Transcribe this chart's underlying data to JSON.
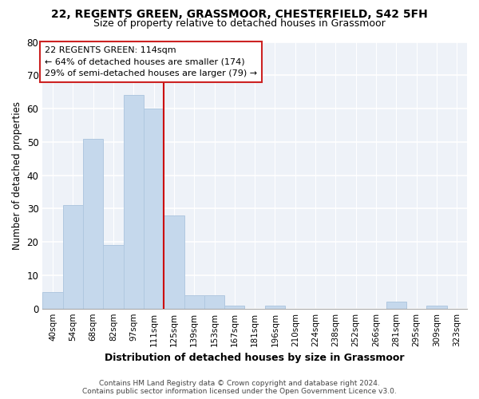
{
  "title": "22, REGENTS GREEN, GRASSMOOR, CHESTERFIELD, S42 5FH",
  "subtitle": "Size of property relative to detached houses in Grassmoor",
  "xlabel": "Distribution of detached houses by size in Grassmoor",
  "ylabel": "Number of detached properties",
  "bar_labels": [
    "40sqm",
    "54sqm",
    "68sqm",
    "82sqm",
    "97sqm",
    "111sqm",
    "125sqm",
    "139sqm",
    "153sqm",
    "167sqm",
    "181sqm",
    "196sqm",
    "210sqm",
    "224sqm",
    "238sqm",
    "252sqm",
    "266sqm",
    "281sqm",
    "295sqm",
    "309sqm",
    "323sqm"
  ],
  "bar_values": [
    5,
    31,
    51,
    19,
    64,
    60,
    28,
    4,
    4,
    1,
    0,
    1,
    0,
    0,
    0,
    0,
    0,
    2,
    0,
    1,
    0
  ],
  "bar_color": "#c5d8ec",
  "bar_edge_color": "#b0c8e0",
  "vline_x": 5.5,
  "vline_color": "#cc0000",
  "annotation_lines": [
    "22 REGENTS GREEN: 114sqm",
    "← 64% of detached houses are smaller (174)",
    "29% of semi-detached houses are larger (79) →"
  ],
  "ylim": [
    0,
    80
  ],
  "yticks": [
    0,
    10,
    20,
    30,
    40,
    50,
    60,
    70,
    80
  ],
  "bg_color": "#ffffff",
  "plot_bg_color": "#eef2f8",
  "footer_line1": "Contains HM Land Registry data © Crown copyright and database right 2024.",
  "footer_line2": "Contains public sector information licensed under the Open Government Licence v3.0."
}
